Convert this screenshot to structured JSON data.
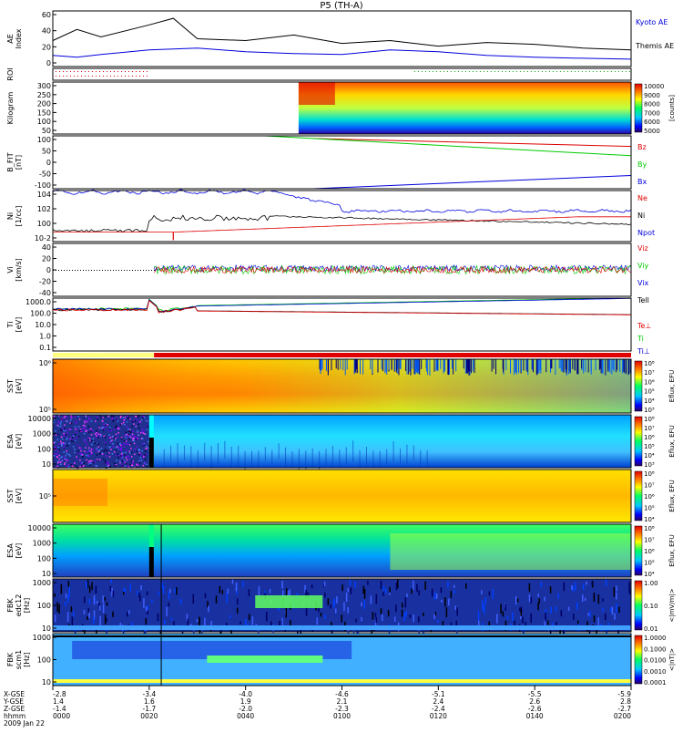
{
  "title": "P5 (TH-A)",
  "colors": {
    "blue": "#0000dd",
    "red": "#dd0000",
    "green": "#00cc00",
    "black": "#000000"
  },
  "date_label": "2009 Jan 22",
  "x_axis_rows": [
    {
      "label": "X-GSE",
      "values": [
        "-2.8",
        "-3.4",
        "-4.0",
        "-4.6",
        "-5.1",
        "-5.5",
        "-5.9"
      ]
    },
    {
      "label": "Y-GSE",
      "values": [
        "1.4",
        "1.6",
        "1.9",
        "2.1",
        "2.4",
        "2.6",
        "2.8"
      ]
    },
    {
      "label": "Z-GSE",
      "values": [
        "-1.4",
        "-1.7",
        "-2.0",
        "-2.3",
        "-2.4",
        "-2.6",
        "-2.7"
      ]
    },
    {
      "label": "hhmm",
      "values": [
        "0000",
        "0020",
        "0040",
        "0100",
        "0120",
        "0140",
        "0200"
      ]
    }
  ],
  "chart_data": [
    {
      "type": "line",
      "ylabel": "AE Index",
      "yticks": [
        "0",
        "20",
        "40",
        "60"
      ],
      "ylim": [
        0,
        60
      ],
      "series": [
        {
          "name": "Kyoto AE",
          "color": "#0000dd",
          "x": [
            0,
            5,
            10,
            20,
            30,
            40,
            50,
            60,
            70,
            80,
            90,
            100,
            110,
            120
          ],
          "values": [
            12,
            10,
            13,
            18,
            20,
            16,
            14,
            13,
            18,
            16,
            12,
            10,
            9,
            8
          ]
        },
        {
          "name": "Themis AE",
          "color": "#000000",
          "x": [
            0,
            5,
            10,
            20,
            25,
            30,
            40,
            50,
            60,
            70,
            80,
            90,
            100,
            110,
            120
          ],
          "values": [
            28,
            40,
            32,
            45,
            52,
            30,
            28,
            34,
            25,
            28,
            22,
            26,
            24,
            20,
            18
          ]
        }
      ]
    },
    {
      "type": "line",
      "ylabel": "ROI",
      "yticks": [],
      "series": []
    },
    {
      "type": "heatmap",
      "ylabel": "Kilogram",
      "yticks": [
        "50",
        "100",
        "150",
        "200",
        "250",
        "300"
      ],
      "ylim": [
        0,
        300
      ],
      "colorbar": {
        "label": "[counts]",
        "ticks": [
          "5000",
          "6000",
          "7000",
          "8000",
          "9000",
          "10000"
        ]
      }
    },
    {
      "type": "line",
      "ylabel": "B_FIT [nT]",
      "yticks": [
        "-100",
        "-50",
        "0",
        "50",
        "100"
      ],
      "ylim": [
        -100,
        100
      ],
      "series": [
        {
          "name": "Bz",
          "color": "#dd0000",
          "x": [
            54,
            120
          ],
          "values": [
            90,
            60
          ]
        },
        {
          "name": "By",
          "color": "#00cc00",
          "x": [
            44,
            120
          ],
          "values": [
            100,
            25
          ]
        },
        {
          "name": "Bx",
          "color": "#0000dd",
          "x": [
            54,
            120
          ],
          "values": [
            -100,
            -50
          ]
        }
      ]
    },
    {
      "type": "line",
      "ylabel": "Ni [1/cc]",
      "yticks": [
        "10-2",
        "100",
        "102",
        "104"
      ],
      "series": [
        {
          "name": "Ne",
          "color": "#dd0000"
        },
        {
          "name": "Ni",
          "color": "#000000"
        },
        {
          "name": "Npot",
          "color": "#0000dd"
        }
      ]
    },
    {
      "type": "line",
      "ylabel": "Vi [km/s]",
      "yticks": [
        "-40",
        "-20",
        "0",
        "20",
        "40"
      ],
      "ylim": [
        -50,
        50
      ],
      "series": [
        {
          "name": "Viz",
          "color": "#dd0000"
        },
        {
          "name": "Viy",
          "color": "#00cc00"
        },
        {
          "name": "Vix",
          "color": "#0000dd"
        }
      ]
    },
    {
      "type": "line",
      "ylabel": "Ti [eV]",
      "yticks": [
        "0.1",
        "1.0",
        "10.0",
        "100.0",
        "1000.0"
      ],
      "series": [
        {
          "name": "Tell",
          "color": "#000000"
        },
        {
          "name": "Te⊥",
          "color": "#dd0000"
        },
        {
          "name": "Ti",
          "color": "#00cc00"
        },
        {
          "name": "Ti⊥",
          "color": "#0000dd"
        }
      ]
    },
    {
      "type": "heatmap",
      "ylabel": "SST [eV]",
      "yticks": [
        "10⁵",
        "10⁶"
      ],
      "colorbar": {
        "label": "Eflux, EFU",
        "ticks": [
          "10³",
          "10⁴",
          "10⁵",
          "10⁶",
          "10⁷",
          "10⁸"
        ]
      }
    },
    {
      "type": "heatmap",
      "ylabel": "ESA [eV]",
      "yticks": [
        "10",
        "100",
        "1000",
        "10000"
      ],
      "colorbar": {
        "label": "Eflux, EFU",
        "ticks": [
          "10³",
          "10⁴",
          "10⁵",
          "10⁶",
          "10⁷",
          "10⁸"
        ]
      }
    },
    {
      "type": "heatmap",
      "ylabel": "SST [eV]",
      "yticks": [
        "10⁵"
      ],
      "colorbar": {
        "label": "Eflux, EFU",
        "ticks": [
          "10⁴",
          "10⁵",
          "10⁶",
          "10⁷",
          "10⁸"
        ]
      }
    },
    {
      "type": "heatmap",
      "ylabel": "ESA [eV]",
      "yticks": [
        "10",
        "100",
        "1000",
        "10000"
      ],
      "colorbar": {
        "label": "Eflux, EFU",
        "ticks": [
          "10⁴",
          "10⁵",
          "10⁶",
          "10⁷",
          "10⁸"
        ]
      }
    },
    {
      "type": "heatmap",
      "ylabel": "FBK edc12 [Hz]",
      "yticks": [
        "10",
        "100",
        "1000"
      ],
      "colorbar": {
        "label": "<|mV/m|>",
        "ticks": [
          "0.01",
          "0.10",
          "1.00"
        ]
      }
    },
    {
      "type": "heatmap",
      "ylabel": "FBK scm1 [Hz]",
      "yticks": [
        "10",
        "100",
        "1000"
      ],
      "colorbar": {
        "label": "<|nT|>",
        "ticks": [
          "0.0001",
          "0.0010",
          "0.0100",
          "0.1000",
          "1.0000"
        ]
      }
    }
  ]
}
